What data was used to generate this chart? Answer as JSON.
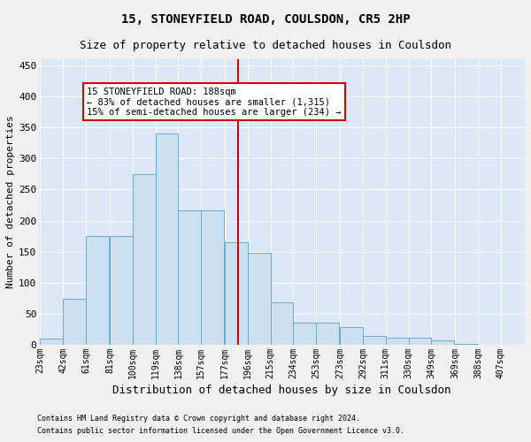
{
  "title": "15, STONEYFIELD ROAD, COULSDON, CR5 2HP",
  "subtitle": "Size of property relative to detached houses in Coulsdon",
  "xlabel": "Distribution of detached houses by size in Coulsdon",
  "ylabel": "Number of detached properties",
  "footer_line1": "Contains HM Land Registry data © Crown copyright and database right 2024.",
  "footer_line2": "Contains public sector information licensed under the Open Government Licence v3.0.",
  "bin_labels": [
    "23sqm",
    "42sqm",
    "61sqm",
    "81sqm",
    "100sqm",
    "119sqm",
    "138sqm",
    "157sqm",
    "177sqm",
    "196sqm",
    "215sqm",
    "234sqm",
    "253sqm",
    "273sqm",
    "292sqm",
    "311sqm",
    "330sqm",
    "349sqm",
    "369sqm",
    "388sqm",
    "407sqm"
  ],
  "bin_edges": [
    23,
    42,
    61,
    81,
    100,
    119,
    138,
    157,
    177,
    196,
    215,
    234,
    253,
    273,
    292,
    311,
    330,
    349,
    369,
    388,
    407
  ],
  "bar_heights": [
    10,
    74,
    175,
    175,
    275,
    340,
    217,
    217,
    165,
    148,
    68,
    35,
    35,
    28,
    15,
    12,
    12,
    7,
    1,
    0,
    0
  ],
  "bar_color": "#cce0f0",
  "bar_edgecolor": "#6aaad4",
  "property_size": 188,
  "vline_color": "#cc0000",
  "annotation_line1": "15 STONEYFIELD ROAD: 188sqm",
  "annotation_line2": "← 83% of detached houses are smaller (1,315)",
  "annotation_line3": "15% of semi-detached houses are larger (234) →",
  "annotation_box_color": "#ffffff",
  "annotation_box_edgecolor": "#cc0000",
  "ylim": [
    0,
    460
  ],
  "yticks": [
    0,
    50,
    100,
    150,
    200,
    250,
    300,
    350,
    400,
    450
  ],
  "bg_color": "#dce8f5",
  "grid_color": "#ffffff",
  "title_fontsize": 10,
  "subtitle_fontsize": 9,
  "ylabel_fontsize": 8,
  "xlabel_fontsize": 9,
  "tick_fontsize": 7,
  "footer_fontsize": 6,
  "fig_bg": "#f0f0f0"
}
